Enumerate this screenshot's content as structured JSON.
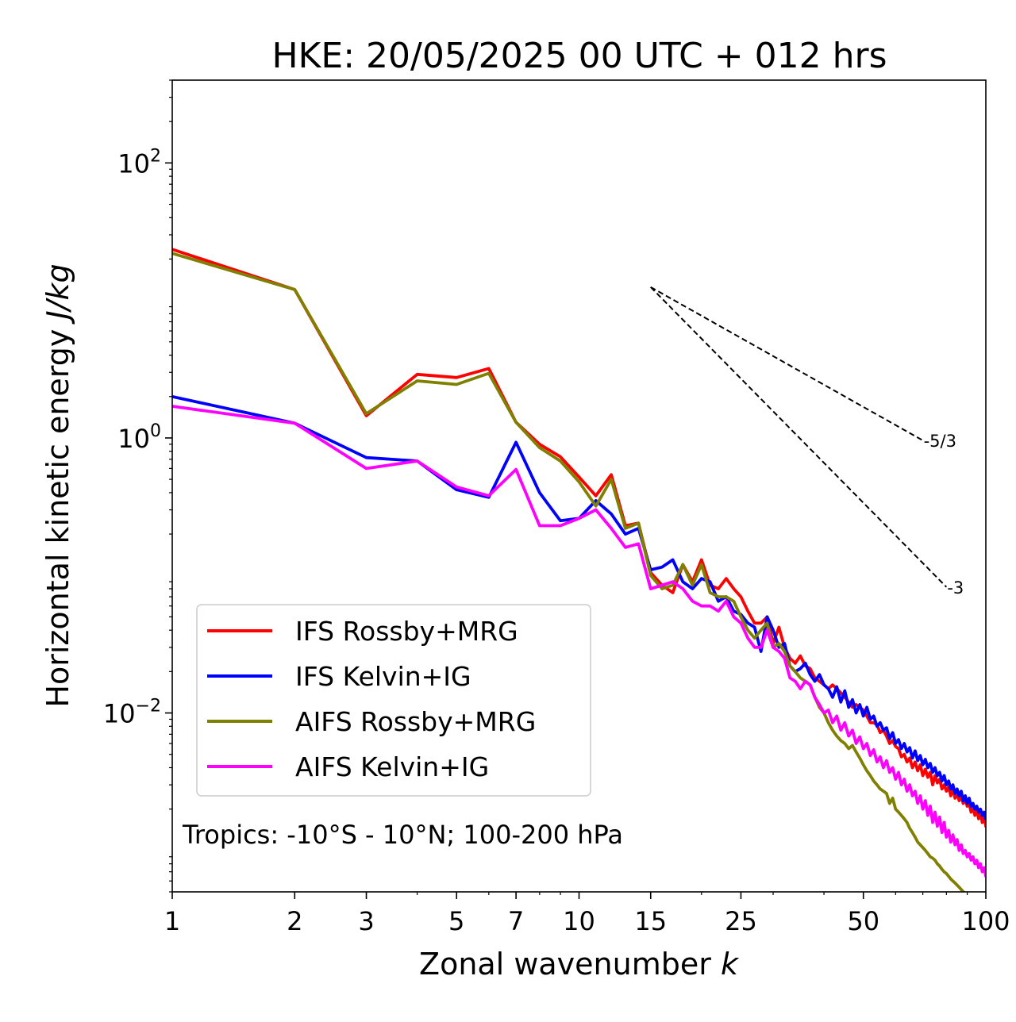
{
  "chart_data": {
    "type": "line",
    "title": "HKE: 20/05/2025 00 UTC + 012 hrs",
    "xlabel": "Zonal wavenumber",
    "xlabel_italic": "k",
    "ylabel": "Horizontal kinetic energy",
    "ylabel_italic": "J/kg",
    "xscale": "log",
    "yscale": "log",
    "xlim": [
      1,
      100
    ],
    "ylim": [
      0.0005,
      400
    ],
    "x_ticks": [
      1,
      2,
      3,
      5,
      7,
      10,
      15,
      25,
      50,
      100
    ],
    "x_tick_labels": [
      "1",
      "2",
      "3",
      "5",
      "7",
      "10",
      "15",
      "25",
      "50",
      "100"
    ],
    "y_ticks": [
      0.01,
      1,
      100
    ],
    "y_tick_labels": [
      {
        "base": "10",
        "exp": "−2"
      },
      {
        "base": "10",
        "exp": "0"
      },
      {
        "base": "10",
        "exp": "2"
      }
    ],
    "grid": false,
    "legend_position": "lower-left",
    "annotation": "Tropics: -10°S - 10°N; 100-200 hPa",
    "reference_lines": [
      {
        "label": "-5/3",
        "slope": -1.6667,
        "x0": 15,
        "y0": 12.5,
        "x1": 70,
        "style": "dashed"
      },
      {
        "label": "-3",
        "slope": -3,
        "x0": 15,
        "y0": 12.5,
        "x1": 80,
        "style": "dashed"
      }
    ],
    "x": [
      1,
      2,
      3,
      4,
      5,
      6,
      7,
      8,
      9,
      10,
      11,
      12,
      13,
      14,
      15,
      16,
      17,
      18,
      19,
      20,
      21,
      22,
      23,
      24,
      25,
      26,
      27,
      28,
      29,
      30,
      31,
      32,
      33,
      34,
      35,
      36,
      37,
      38,
      39,
      40,
      41,
      42,
      43,
      44,
      45,
      46,
      47,
      48,
      49,
      50,
      51,
      52,
      53,
      54,
      55,
      56,
      57,
      58,
      59,
      60,
      61,
      62,
      63,
      64,
      65,
      66,
      67,
      68,
      69,
      70,
      71,
      72,
      73,
      74,
      75,
      76,
      77,
      78,
      79,
      80,
      81,
      82,
      83,
      84,
      85,
      86,
      87,
      88,
      89,
      90,
      91,
      92,
      93,
      94,
      95,
      96,
      97,
      98,
      99,
      100
    ],
    "series": [
      {
        "name": "IFS Rossby+MRG",
        "color": "#ff0000",
        "values": [
          23.5,
          12.0,
          1.45,
          2.9,
          2.75,
          3.2,
          1.3,
          0.9,
          0.73,
          0.52,
          0.38,
          0.54,
          0.23,
          0.24,
          0.105,
          0.085,
          0.075,
          0.12,
          0.09,
          0.13,
          0.085,
          0.08,
          0.095,
          0.08,
          0.07,
          0.055,
          0.045,
          0.045,
          0.05,
          0.032,
          0.042,
          0.03,
          0.025,
          0.023,
          0.026,
          0.022,
          0.021,
          0.018,
          0.017,
          0.016,
          0.015,
          0.016,
          0.015,
          0.014,
          0.013,
          0.012,
          0.011,
          0.0115,
          0.011,
          0.0105,
          0.0095,
          0.0085,
          0.0085,
          0.0082,
          0.0072,
          0.0075,
          0.0068,
          0.006,
          0.0063,
          0.0057,
          0.0055,
          0.0048,
          0.005,
          0.0044,
          0.0047,
          0.004,
          0.0044,
          0.0038,
          0.0042,
          0.0035,
          0.0039,
          0.0034,
          0.0037,
          0.003,
          0.0035,
          0.0031,
          0.0033,
          0.0028,
          0.003,
          0.0027,
          0.0029,
          0.0025,
          0.0028,
          0.0024,
          0.0026,
          0.0023,
          0.0025,
          0.0022,
          0.0024,
          0.0021,
          0.0022,
          0.0019,
          0.0021,
          0.0018,
          0.002,
          0.0017,
          0.0019,
          0.0016,
          0.0018,
          0.0015
        ]
      },
      {
        "name": "IFS Kelvin+IG",
        "color": "#0000ff",
        "values": [
          2.0,
          1.28,
          0.72,
          0.68,
          0.42,
          0.37,
          0.93,
          0.4,
          0.25,
          0.26,
          0.35,
          0.28,
          0.2,
          0.22,
          0.11,
          0.115,
          0.13,
          0.09,
          0.08,
          0.095,
          0.09,
          0.065,
          0.07,
          0.055,
          0.052,
          0.045,
          0.042,
          0.028,
          0.05,
          0.04,
          0.03,
          0.032,
          0.022,
          0.02,
          0.021,
          0.023,
          0.019,
          0.017,
          0.019,
          0.016,
          0.015,
          0.013,
          0.0155,
          0.012,
          0.0145,
          0.011,
          0.0125,
          0.01,
          0.0115,
          0.0095,
          0.011,
          0.009,
          0.0095,
          0.008,
          0.0085,
          0.0075,
          0.0078,
          0.0065,
          0.0072,
          0.006,
          0.0064,
          0.0055,
          0.006,
          0.0052,
          0.0056,
          0.0047,
          0.0053,
          0.0045,
          0.0049,
          0.0042,
          0.0046,
          0.004,
          0.0043,
          0.0037,
          0.004,
          0.0035,
          0.0037,
          0.0032,
          0.0035,
          0.003,
          0.0032,
          0.0028,
          0.003,
          0.0026,
          0.0028,
          0.0025,
          0.0027,
          0.0023,
          0.0025,
          0.0022,
          0.0024,
          0.0021,
          0.0022,
          0.002,
          0.0021,
          0.0019,
          0.002,
          0.0018,
          0.0019,
          0.0017
        ]
      },
      {
        "name": "AIFS Rossby+MRG",
        "color": "#808000",
        "values": [
          22.0,
          12.0,
          1.5,
          2.6,
          2.45,
          2.95,
          1.3,
          0.85,
          0.68,
          0.48,
          0.32,
          0.5,
          0.22,
          0.24,
          0.1,
          0.08,
          0.085,
          0.12,
          0.085,
          0.12,
          0.075,
          0.07,
          0.07,
          0.065,
          0.05,
          0.04,
          0.035,
          0.04,
          0.045,
          0.03,
          0.032,
          0.028,
          0.022,
          0.02,
          0.018,
          0.017,
          0.016,
          0.013,
          0.011,
          0.01,
          0.0085,
          0.0075,
          0.0068,
          0.0063,
          0.006,
          0.0055,
          0.0058,
          0.0052,
          0.0047,
          0.0042,
          0.0038,
          0.0035,
          0.0032,
          0.003,
          0.0028,
          0.0027,
          0.0026,
          0.0022,
          0.0024,
          0.002,
          0.0019,
          0.0018,
          0.0017,
          0.0016,
          0.00145,
          0.00135,
          0.00125,
          0.00115,
          0.0011,
          0.00105,
          0.001,
          0.00095,
          0.0009,
          0.00088,
          0.00085,
          0.0008,
          0.00077,
          0.00073,
          0.0007,
          0.00068,
          0.00065,
          0.00062,
          0.0006,
          0.00058,
          0.00056,
          0.00054,
          0.00052,
          0.0005,
          0.00049,
          0.00048,
          0.00047,
          0.00046,
          0.00045,
          0.00044,
          0.00043,
          0.00042,
          0.00041,
          0.0004,
          0.00039,
          0.00038
        ]
      },
      {
        "name": "AIFS Kelvin+IG",
        "color": "#ff00ff",
        "values": [
          1.7,
          1.28,
          0.6,
          0.68,
          0.44,
          0.38,
          0.59,
          0.23,
          0.23,
          0.26,
          0.3,
          0.22,
          0.16,
          0.17,
          0.08,
          0.085,
          0.09,
          0.08,
          0.065,
          0.06,
          0.06,
          0.055,
          0.065,
          0.05,
          0.045,
          0.035,
          0.03,
          0.03,
          0.04,
          0.03,
          0.028,
          0.025,
          0.018,
          0.017,
          0.015,
          0.017,
          0.016,
          0.013,
          0.0115,
          0.01,
          0.0105,
          0.0085,
          0.0095,
          0.0075,
          0.0085,
          0.0068,
          0.0075,
          0.006,
          0.0067,
          0.0055,
          0.006,
          0.0049,
          0.0054,
          0.0044,
          0.0048,
          0.004,
          0.0045,
          0.0037,
          0.004,
          0.0033,
          0.0037,
          0.003,
          0.0033,
          0.0027,
          0.003,
          0.0025,
          0.0027,
          0.0022,
          0.0025,
          0.002,
          0.0023,
          0.0018,
          0.0021,
          0.0016,
          0.0019,
          0.0015,
          0.00175,
          0.00135,
          0.0016,
          0.00125,
          0.0014,
          0.00115,
          0.0013,
          0.0011,
          0.0012,
          0.001,
          0.0011,
          0.00095,
          0.001,
          0.0009,
          0.00095,
          0.00085,
          0.0009,
          0.0008,
          0.00085,
          0.00075,
          0.0008,
          0.0007,
          0.00075,
          0.00065
        ]
      }
    ]
  }
}
